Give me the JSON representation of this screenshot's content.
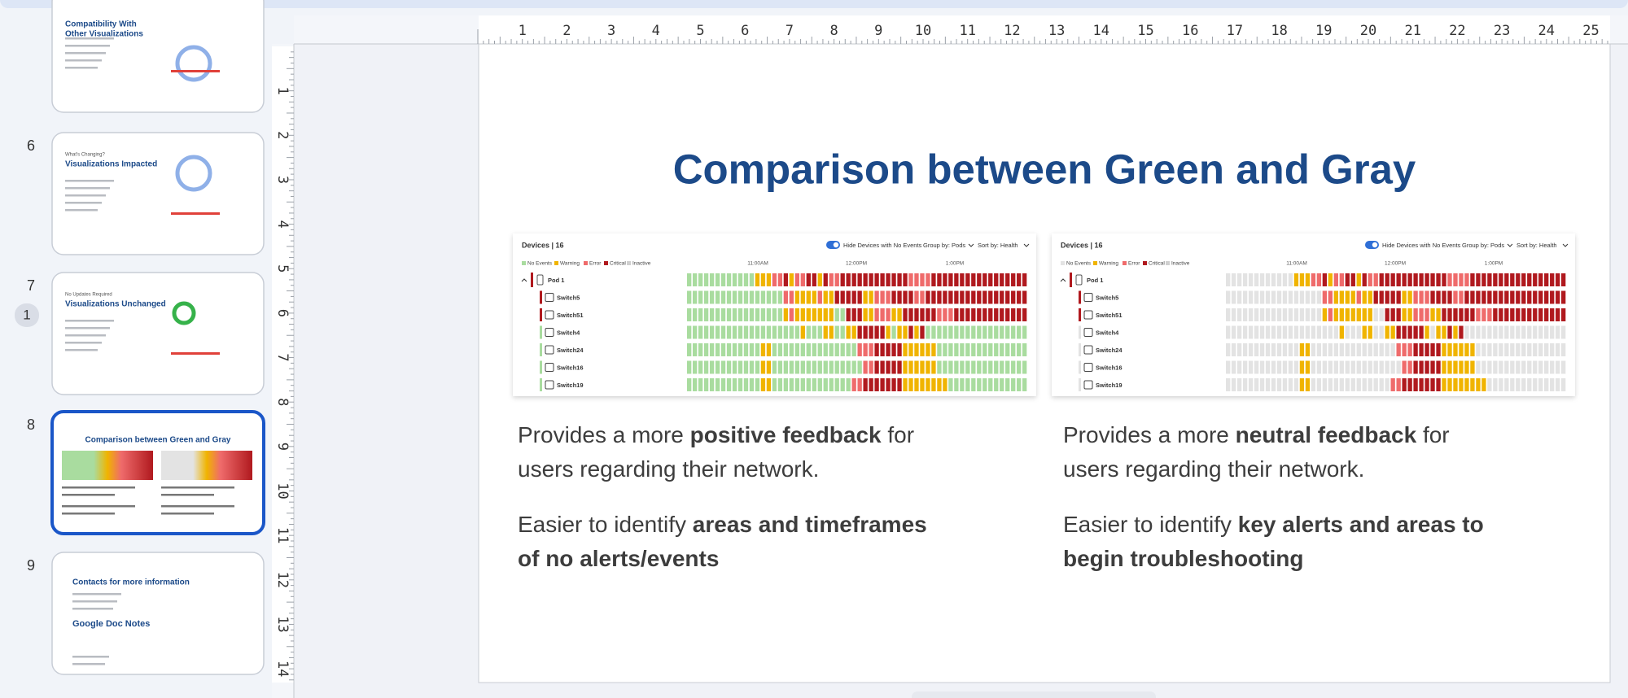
{
  "thumbnails": [
    {
      "headings": [
        "Compatibility With",
        "Other Visualizations"
      ]
    },
    {
      "number": "6",
      "kicker": "What's Changing?",
      "headings": [
        "Visualizations Impacted"
      ]
    },
    {
      "number": "7",
      "kicker": "No Updates Required",
      "headings": [
        "Visualizations Unchanged"
      ],
      "badge": "1"
    },
    {
      "number": "8",
      "headings": [
        "Comparison between Green and Gray"
      ],
      "selected": true
    },
    {
      "number": "9",
      "headings": [
        "Contacts for more information",
        "Google Doc Notes"
      ]
    }
  ],
  "rulers": {
    "horizontal": [
      1,
      2,
      3,
      4,
      5,
      6,
      7,
      8,
      9,
      10,
      11,
      12,
      13,
      14,
      15,
      16,
      17,
      18,
      19,
      20,
      21,
      22,
      23,
      24,
      25
    ],
    "vertical": [
      1,
      2,
      3,
      4,
      5,
      6,
      7,
      8,
      9,
      10,
      11,
      12,
      13,
      14
    ]
  },
  "slide": {
    "title": "Comparison between Green and Gray",
    "panels": [
      {
        "header": "Devices | 16",
        "toggle_label": "Hide Devices with No Events",
        "group_by": "Group by: Pods",
        "sort_by": "Sort by: Health",
        "legend": [
          {
            "code": "G",
            "label": "No Events",
            "color": "#a9dc9f"
          },
          {
            "code": "Y",
            "label": "Warning",
            "color": "#f0b400"
          },
          {
            "code": "O",
            "label": "Error",
            "color": "#ef6b6b"
          },
          {
            "code": "R",
            "label": "Critical",
            "color": "#b0191e"
          },
          {
            "code": "I",
            "label": "Inactive",
            "color": "#cfcfcf"
          }
        ],
        "times": [
          "11:00AM",
          "12:00PM",
          "1:00PM"
        ],
        "rows": [
          {
            "label": "Pod 1",
            "status": "R",
            "cells": "GGGGGGGGGGGGYYYOORYOORRYROORRRRRRRRRRRROOOORRRRRRRRRRRRRRRRR"
          },
          {
            "label": "Switch5",
            "status": "R",
            "cells": "GGGGGGGGGGGGGGGGGOOYYYYOYYRRRRRYYOOORRRROORRRRRRRRRRRRRRRRRR"
          },
          {
            "label": "Switch51",
            "status": "R",
            "cells": "GGGGGGGGGGGGGGGGGYOYYYYYYYGGRRRYYOOOYYRRRRRROOORRRRRRRRRRRRR"
          },
          {
            "label": "Switch4",
            "status": "G",
            "cells": "GGGGGGGGGGGGGGGGGGGGYGGGYYGGYYRRRRRYGYYRYRGGGGGGGGGGGGGGGGGG"
          },
          {
            "label": "Switch24",
            "status": "G",
            "cells": "GGGGGGGGGGGGGYYGGGGGGGGGGGGGGGOOORRRRRYYYYYYGGGGGGGGGGGGGGGG"
          },
          {
            "label": "Switch16",
            "status": "G",
            "cells": "GGGGGGGGGGGGGYYGGGGGGGGGGGGGGGGOORRRRRYYYYYYGGGGGGGGGGGGGGGG"
          },
          {
            "label": "Switch19",
            "status": "G",
            "cells": "GGGGGGGGGGGGGYYGGGGGGGGGGGGGGOORRRRRRRYYYYYYYYGGGGGGGGGGGGGG"
          }
        ]
      },
      {
        "header": "Devices | 16",
        "toggle_label": "Hide Devices with No Events",
        "group_by": "Group by: Pods",
        "sort_by": "Sort by: Health",
        "legend": [
          {
            "code": "N",
            "label": "No Events",
            "color": "#e3e3e3"
          },
          {
            "code": "Y",
            "label": "Warning",
            "color": "#f0b400"
          },
          {
            "code": "O",
            "label": "Error",
            "color": "#ef6b6b"
          },
          {
            "code": "R",
            "label": "Critical",
            "color": "#b0191e"
          },
          {
            "code": "I",
            "label": "Inactive",
            "color": "#cfcfcf"
          }
        ],
        "times": [
          "11:00AM",
          "12:00PM",
          "1:00PM"
        ],
        "rows": [
          {
            "label": "Pod 1",
            "status": "R",
            "cells": "NNNNNNNNNNNNYYYOORYOORRYROORRRRRRRRRRRROOOORRRRRRRRRRRRRRRRR"
          },
          {
            "label": "Switch5",
            "status": "R",
            "cells": "NNNNNNNNNNNNNNNNNOOYYYYOYYRRRRRYYOOORRRROORRRRRRRRRRRRRRRRRR"
          },
          {
            "label": "Switch51",
            "status": "R",
            "cells": "NNNNNNNNNNNNNNNNNYOYYYYYYYNNRRRYYOOOYYRRRRRROOORRRRRRRRRRRRR"
          },
          {
            "label": "Switch4",
            "status": "N",
            "cells": "NNNNNNNNNNNNNNNNNNNNYNNNYYNNYYRRRRRYNYYRYRNNNNNNNNNNNNNNNNNN"
          },
          {
            "label": "Switch24",
            "status": "N",
            "cells": "NNNNNNNNNNNNNYYNNNNNNNNNNNNNNNOOORRRRRYYYYYYNNNNNNNNNNNNNNNN"
          },
          {
            "label": "Switch16",
            "status": "N",
            "cells": "NNNNNNNNNNNNNYYNNNNNNNNNNNNNNNNOORRRRRYYYYYYNNNNNNNNNNNNNNNN"
          },
          {
            "label": "Switch19",
            "status": "N",
            "cells": "NNNNNNNNNNNNNYYNNNNNNNNNNNNNNOORRRRRRRYYYYYYYYNNNNNNNNNNNNNN"
          }
        ]
      }
    ],
    "columns": [
      {
        "paragraphs": [
          {
            "lines": [
              [
                {
                  "text": "Provides a more ",
                  "bold": false
                },
                {
                  "text": "positive feedback",
                  "bold": true
                },
                {
                  "text": " for",
                  "bold": false
                }
              ],
              [
                {
                  "text": "users regarding their network.",
                  "bold": false
                }
              ]
            ]
          },
          {
            "lines": [
              [
                {
                  "text": "Easier to identify ",
                  "bold": false
                },
                {
                  "text": "areas and timeframes",
                  "bold": true
                }
              ],
              [
                {
                  "text": "of no alerts/events",
                  "bold": true
                }
              ]
            ]
          }
        ]
      },
      {
        "paragraphs": [
          {
            "lines": [
              [
                {
                  "text": "Provides a more ",
                  "bold": false
                },
                {
                  "text": "neutral feedback",
                  "bold": true
                },
                {
                  "text": " for",
                  "bold": false
                }
              ],
              [
                {
                  "text": "users regarding their network.",
                  "bold": false
                }
              ]
            ]
          },
          {
            "lines": [
              [
                {
                  "text": "Easier to identify ",
                  "bold": false
                },
                {
                  "text": "key alerts and areas to",
                  "bold": true
                }
              ],
              [
                {
                  "text": "begin troubleshooting",
                  "bold": true
                }
              ]
            ]
          }
        ]
      }
    ]
  }
}
